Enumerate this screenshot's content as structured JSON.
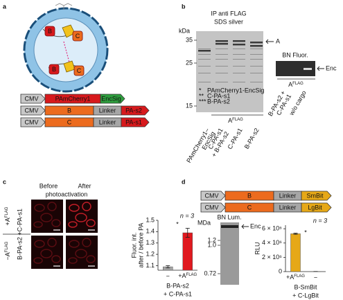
{
  "panel_labels": [
    "a",
    "b",
    "c",
    "d"
  ],
  "a": {
    "cargo_labels": [
      "B",
      "C",
      "B",
      "C"
    ],
    "constructs": [
      {
        "promoter": "CMV",
        "parts": [
          "PAmCherry1",
          "EncSig"
        ],
        "colors": [
          "#d7191c",
          "#2e9e3e"
        ]
      },
      {
        "promoter": "CMV",
        "parts": [
          "B",
          "Linker",
          "PA-s2"
        ],
        "colors": [
          "#ec6b1e",
          "#a6a6a6",
          "#d7191c"
        ]
      },
      {
        "promoter": "CMV",
        "parts": [
          "C",
          "Linker",
          "PA-s1"
        ],
        "colors": [
          "#ec6b1e",
          "#a6a6a6",
          "#d7191c"
        ]
      }
    ]
  },
  "b": {
    "title": [
      "IP anti FLAG",
      "SDS silver"
    ],
    "marker_unit": "kDa",
    "markers": [
      35,
      25,
      15
    ],
    "band_label": "A",
    "legend": [
      {
        "symbol": "*",
        "text": "PAmCherry1-EncSig"
      },
      {
        "symbol": "**",
        "text": "C-PA-s1"
      },
      {
        "symbol": "***",
        "text": "B-PA-s2"
      }
    ],
    "bracket": {
      "text": "A",
      "sup": "FLAG"
    },
    "lanes": [
      [
        "PAmCherry1–",
        "EncSig"
      ],
      [
        "C-PA-s1",
        "+ B-PA-s2"
      ],
      [
        "C-PA-s1"
      ],
      [
        "B-PA-s2"
      ]
    ],
    "bn": {
      "title": "BN Fluor.",
      "band_label": "Enc",
      "bracket": {
        "text": "A",
        "sup": "FLAG"
      },
      "lanes": [
        [
          "B-PA-s2 +",
          "C-PA-s1"
        ],
        [
          "w/o cargo"
        ]
      ]
    }
  },
  "c": {
    "column_titles": [
      "Before",
      "After"
    ],
    "column_subtitle": "photoactivation",
    "row_labels": [
      {
        "text": "+A",
        "sup": "FLAG"
      },
      {
        "text": "−A",
        "sup": "FLAG"
      }
    ],
    "construct_label": "B-PA-s2 +C-PA-s1",
    "chart_data": {
      "type": "bar",
      "ylabel": [
        "Fluor. int.",
        "after / before PA"
      ],
      "categories": [
        "−",
        {
          "text": "+A",
          "sup": "FLAG"
        }
      ],
      "values": [
        1.09,
        1.39
      ],
      "errors": [
        0.01,
        0.04
      ],
      "colors": [
        "#a6a6a6",
        "#e0191f"
      ],
      "ylim": [
        1.06,
        1.5
      ],
      "yticks": [
        1.1,
        1.2,
        1.3,
        1.4,
        1.5
      ],
      "annotation": "n = 3",
      "significance": "*",
      "xlabel": [
        "B-PA-s2",
        "+ C-PA-s1"
      ]
    }
  },
  "d": {
    "constructs": [
      {
        "promoter": "CMV",
        "parts": [
          "B",
          "Linker",
          "SmBit"
        ],
        "colors": [
          "#ec6b1e",
          "#a6a6a6",
          "#e6a817"
        ]
      },
      {
        "promoter": "CMV",
        "parts": [
          "C",
          "Linker",
          "LgBit"
        ],
        "colors": [
          "#ec6b1e",
          "#a6a6a6",
          "#e6a817"
        ]
      }
    ],
    "gel_title": "BN Lum.",
    "marker_unit": "MDa",
    "markers": [
      1.2,
      {
        "value": 1,
        "label": "1.0"
      },
      0.72
    ],
    "band_label": "Enc",
    "chart_data": {
      "type": "bar",
      "ylabel": [
        "RLU"
      ],
      "categories": [
        {
          "text": "+A",
          "sup": "FLAG"
        },
        "−"
      ],
      "values": [
        5300000,
        20000
      ],
      "errors": [
        80000,
        0
      ],
      "colors": [
        "#e6a817",
        "#e6a817"
      ],
      "ylim": [
        0,
        6500000
      ],
      "yticks": [
        0,
        {
          "value": 2000000,
          "label": "2 × 10⁶"
        },
        {
          "value": 4000000,
          "label": "4 × 10⁶"
        },
        {
          "value": 6000000,
          "label": "6 × 10⁶"
        }
      ],
      "annotation": "n = 3",
      "significance": "*",
      "xlabel": [
        "B-SmBit",
        "+ C-LgBit"
      ]
    }
  }
}
